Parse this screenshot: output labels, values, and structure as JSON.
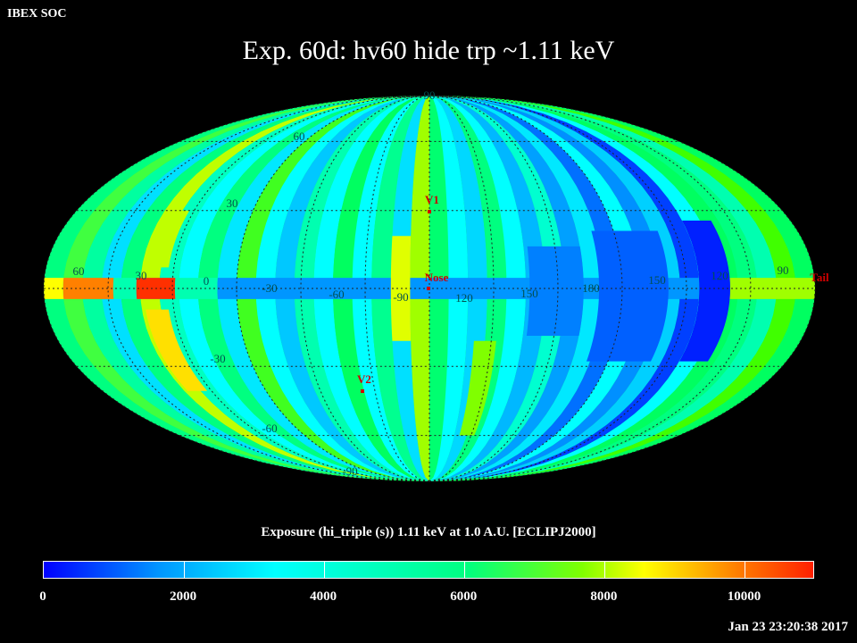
{
  "header": {
    "label": "IBEX SOC"
  },
  "title": "Exp.   60d: hv60 hide trp ~1.11 keV",
  "map": {
    "projection": "mollweide",
    "longitude_labels": [
      "60",
      "30",
      "0",
      "-30",
      "-60",
      "-90",
      "120",
      "150",
      "180",
      "150",
      "120",
      "90"
    ],
    "latitude_labels": [
      "90",
      "60",
      "30",
      "-30",
      "-60",
      "-90"
    ],
    "markers": [
      {
        "label": "V1",
        "color": "#d00000"
      },
      {
        "label": "Nose",
        "color": "#d00000"
      },
      {
        "label": "V2",
        "color": "#d00000"
      },
      {
        "label": "Tail",
        "color": "#d00000"
      }
    ],
    "grid_color": "#202020",
    "grid_label_color": "#005050"
  },
  "legend": {
    "title": "Exposure (hi_triple (s))  1.11 keV at 1.0 A.U. [ECLIPJ2000]",
    "ticks": [
      "0",
      "2000",
      "4000",
      "6000",
      "8000",
      "10000"
    ],
    "range": [
      0,
      11000
    ]
  },
  "timestamp": "Jan 23 23:20:38 2017"
}
